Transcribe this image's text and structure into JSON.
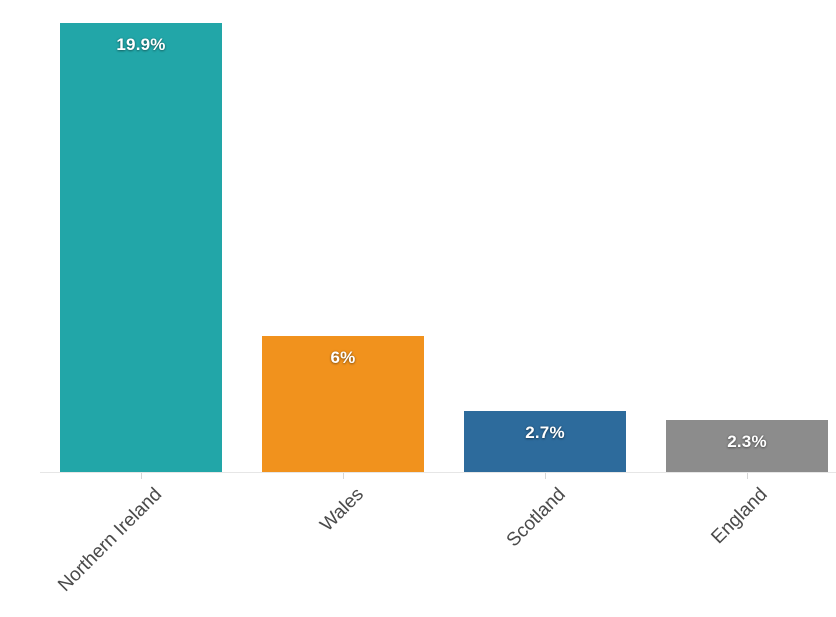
{
  "chart_data": {
    "type": "bar",
    "categories": [
      "Northern Ireland",
      "Wales",
      "Scotland",
      "England"
    ],
    "values": [
      19.9,
      6,
      2.7,
      2.3
    ],
    "value_labels": [
      "19.9%",
      "6%",
      "2.7%",
      "2.3%"
    ],
    "colors": [
      "#22a6a8",
      "#f1921d",
      "#2d6b9c",
      "#8c8c8c"
    ],
    "title": "",
    "xlabel": "",
    "ylabel": "",
    "ylim": [
      0,
      20.9
    ],
    "grid": false,
    "legend": false,
    "value_label_color": "#ffffff",
    "axis_label_color": "#4a4a4a",
    "axis_line_color": "#e6e6e6"
  }
}
